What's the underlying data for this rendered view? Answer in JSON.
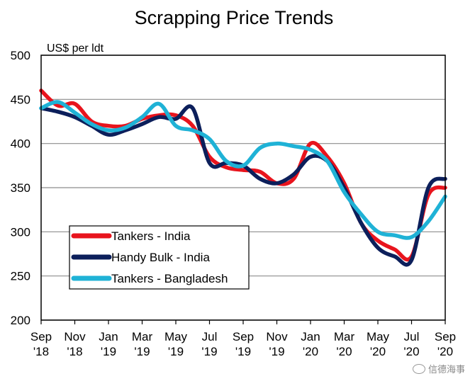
{
  "chart_data": {
    "type": "line",
    "title": "Scrapping Price Trends",
    "ylabel": "US$ per ldt",
    "xlabel": "",
    "ylim": [
      200,
      500
    ],
    "yticks": [
      200,
      250,
      300,
      350,
      400,
      450,
      500
    ],
    "x_ticks": [
      {
        "month": "Sep",
        "year": "'18"
      },
      {
        "month": "Nov",
        "year": "'18"
      },
      {
        "month": "Jan",
        "year": "'19"
      },
      {
        "month": "Mar",
        "year": "'19"
      },
      {
        "month": "May",
        "year": "'19"
      },
      {
        "month": "Jul",
        "year": "'19"
      },
      {
        "month": "Sep",
        "year": "'19"
      },
      {
        "month": "Nov",
        "year": "'19"
      },
      {
        "month": "Jan",
        "year": "'20"
      },
      {
        "month": "Mar",
        "year": "'20"
      },
      {
        "month": "May",
        "year": "'20"
      },
      {
        "month": "Jul",
        "year": "'20"
      },
      {
        "month": "Sep",
        "year": "'20"
      }
    ],
    "grid": "horizontal",
    "legend": "bottom-left",
    "series": [
      {
        "name": "Tankers - India",
        "color": "#e8141d",
        "x": [
          "Sep '18",
          "Oct '18",
          "Nov '18",
          "Dec '18",
          "Jan '19",
          "Feb '19",
          "Mar '19",
          "Apr '19",
          "May '19",
          "Jun '19",
          "Jul '19",
          "Aug '19",
          "Sep '19",
          "Oct '19",
          "Nov '19",
          "Dec '19",
          "Jan '20",
          "Feb '20",
          "Mar '20",
          "Apr '20",
          "May '20",
          "Jun '20",
          "Jul '20",
          "Aug '20",
          "Sep '20"
        ],
        "values": [
          460,
          443,
          445,
          425,
          420,
          420,
          428,
          432,
          432,
          420,
          385,
          373,
          370,
          368,
          355,
          360,
          400,
          385,
          355,
          310,
          290,
          280,
          272,
          342,
          350
        ]
      },
      {
        "name": "Handy Bulk - India",
        "color": "#0c1f5b",
        "x": [
          "Sep '18",
          "Oct '18",
          "Nov '18",
          "Dec '18",
          "Jan '19",
          "Feb '19",
          "Mar '19",
          "Apr '19",
          "May '19",
          "Jun '19",
          "Jul '19",
          "Aug '19",
          "Sep '19",
          "Oct '19",
          "Nov '19",
          "Dec '19",
          "Jan '20",
          "Feb '20",
          "Mar '20",
          "Apr '20",
          "May '20",
          "Jun '20",
          "Jul '20",
          "Aug '20",
          "Sep '20"
        ],
        "values": [
          440,
          436,
          430,
          420,
          410,
          415,
          422,
          430,
          428,
          440,
          378,
          378,
          375,
          360,
          355,
          365,
          385,
          380,
          350,
          310,
          282,
          272,
          268,
          350,
          360
        ]
      },
      {
        "name": "Tankers - Bangladesh",
        "color": "#1fb2d6",
        "x": [
          "Sep '18",
          "Oct '18",
          "Nov '18",
          "Dec '18",
          "Jan '19",
          "Feb '19",
          "Mar '19",
          "Apr '19",
          "May '19",
          "Jun '19",
          "Jul '19",
          "Aug '19",
          "Sep '19",
          "Oct '19",
          "Nov '19",
          "Dec '19",
          "Jan '20",
          "Feb '20",
          "Mar '20",
          "Apr '20",
          "May '20",
          "Jun '20",
          "Jul '20",
          "Aug '20",
          "Sep '20"
        ],
        "values": [
          440,
          447,
          435,
          422,
          415,
          418,
          430,
          445,
          420,
          415,
          405,
          380,
          375,
          395,
          400,
          397,
          393,
          380,
          345,
          320,
          300,
          296,
          294,
          312,
          340
        ]
      }
    ]
  },
  "watermark": {
    "text": "信德海事",
    "icon": "wechat-icon"
  }
}
